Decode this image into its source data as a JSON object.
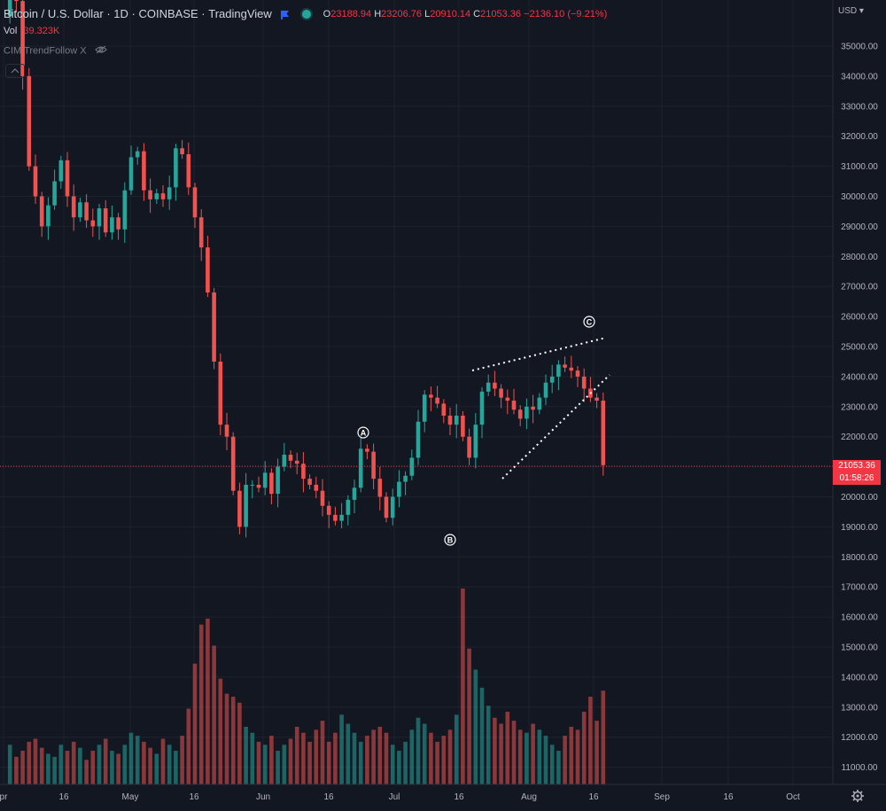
{
  "header": {
    "symbol": "Bitcoin / U.S. Dollar",
    "interval": "1D",
    "exchange": "COINBASE",
    "source": "TradingView",
    "ohlc": {
      "open_label": "O",
      "open": "23188.94",
      "high_label": "H",
      "high": "23206.76",
      "low_label": "L",
      "low": "20910.14",
      "close_label": "C",
      "close": "21053.36",
      "change": "−2136.10 (−9.21%)"
    },
    "volume_label": "Vol",
    "volume": "39.323K",
    "indicator": "CIM TrendFollow X",
    "flag_icon": "flag-icon",
    "status_icon": "status-dot-icon",
    "eye_icon": "eye-off-icon"
  },
  "price_axis": {
    "currency": "USD",
    "labels": [
      "35000.00",
      "34000.00",
      "33000.00",
      "32000.00",
      "31000.00",
      "30000.00",
      "29000.00",
      "28000.00",
      "27000.00",
      "26000.00",
      "25000.00",
      "24000.00",
      "23000.00",
      "22000.00",
      "21000.00",
      "20000.00",
      "19000.00",
      "18000.00",
      "17000.00",
      "16000.00",
      "15000.00",
      "14000.00",
      "13000.00",
      "12000.00",
      "11000.00"
    ],
    "last_price": "21053.36",
    "countdown": "01:58:26"
  },
  "time_axis": {
    "labels": [
      "pr",
      "16",
      "May",
      "16",
      "Jun",
      "16",
      "Jul",
      "16",
      "Aug",
      "16",
      "Sep",
      "16",
      "Oct"
    ]
  },
  "annotations": [
    "A",
    "B",
    "C"
  ],
  "colors": {
    "background": "#131722",
    "grid": "#1e222d",
    "up": "#26a69a",
    "down": "#ef5350",
    "text": "#b2b5be",
    "price_line": "#f23645"
  },
  "icons": {
    "settings": "gear-icon"
  },
  "chart_data": {
    "type": "candlestick",
    "ylim": [
      17500,
      35300
    ],
    "closes": [
      36000,
      37500,
      36500,
      34000,
      31000,
      30000,
      29000,
      29700,
      30500,
      31200,
      30000,
      29300,
      29800,
      29200,
      29000,
      29600,
      28800,
      29300,
      28900,
      30200,
      31300,
      31500,
      30200,
      29900,
      30100,
      29900,
      30300,
      31600,
      31400,
      30300,
      29300,
      28300,
      26800,
      24500,
      22400,
      22000,
      20200,
      19000,
      20400,
      20400,
      20300,
      20800,
      20100,
      21000,
      21400,
      21200,
      21100,
      20600,
      20400,
      20200,
      19700,
      19400,
      19200,
      19400,
      19900,
      20300,
      21600,
      21500,
      20600,
      20000,
      19300,
      20000,
      20500,
      20700,
      21300,
      22500,
      23400,
      23300,
      23100,
      22700,
      22400,
      22700,
      22000,
      21300,
      22400,
      23500,
      23800,
      23600,
      23300,
      23200,
      22900,
      22600,
      23000,
      22900,
      23300,
      23800,
      24000,
      24400,
      24300,
      24200,
      24000,
      23600,
      23300,
      23200,
      21053
    ],
    "volume": {
      "ylim": [
        10600,
        17000
      ],
      "values": [
        11600,
        11800,
        11400,
        11600,
        11900,
        12000,
        11700,
        11500,
        11400,
        11800,
        11600,
        11900,
        11700,
        11300,
        11600,
        11800,
        12000,
        11600,
        11500,
        11800,
        12200,
        12100,
        11900,
        11700,
        11500,
        12000,
        11800,
        11600,
        12100,
        13000,
        14500,
        15800,
        16000,
        15100,
        14000,
        13500,
        13400,
        13200,
        12400,
        12200,
        11900,
        11800,
        12100,
        11600,
        11800,
        12000,
        12400,
        12200,
        11900,
        12300,
        12600,
        11900,
        12200,
        12800,
        12500,
        12200,
        11900,
        12100,
        12300,
        12400,
        12200,
        11800,
        11600,
        11900,
        12300,
        12700,
        12500,
        12200,
        11900,
        12100,
        12300,
        12800,
        17000,
        15000,
        14300,
        13700,
        13100,
        12700,
        12500,
        12900,
        12600,
        12300,
        12200,
        12500,
        12300,
        12100,
        11800,
        11600,
        12100,
        12400,
        12300,
        12900,
        13400,
        12600,
        13600
      ]
    }
  }
}
